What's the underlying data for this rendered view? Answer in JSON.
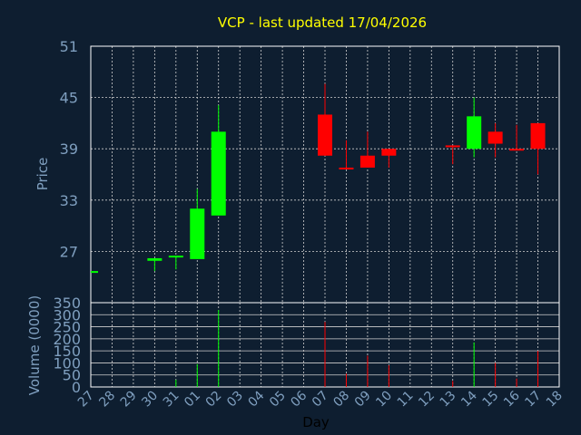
{
  "chart_data": {
    "type": "candlestick",
    "title": "VCP - last updated 17/04/2026",
    "xlabel": "Day",
    "categories": [
      "27",
      "28",
      "29",
      "30",
      "31",
      "01",
      "02",
      "03",
      "04",
      "05",
      "06",
      "07",
      "08",
      "09",
      "10",
      "11",
      "12",
      "13",
      "14",
      "15",
      "16",
      "17",
      "18"
    ],
    "price": {
      "ylabel": "Price",
      "ylim": [
        21,
        51
      ],
      "yticks": [
        27,
        33,
        39,
        45,
        51
      ],
      "grid": true,
      "candles": [
        {
          "day": "27",
          "open": 24.7,
          "high": 24.7,
          "low": 24.7,
          "close": 24.7
        },
        {
          "day": "30",
          "open": 25.9,
          "high": 26.0,
          "low": 24.7,
          "close": 26.2
        },
        {
          "day": "31",
          "open": 26.3,
          "high": 26.4,
          "low": 24.9,
          "close": 26.5
        },
        {
          "day": "01",
          "open": 26.1,
          "high": 34.3,
          "low": 26.1,
          "close": 32.0
        },
        {
          "day": "02",
          "open": 31.2,
          "high": 44.1,
          "low": 31.2,
          "close": 41.0
        },
        {
          "day": "07",
          "open": 43.0,
          "high": 46.6,
          "low": 38.2,
          "close": 38.2
        },
        {
          "day": "08",
          "open": 36.8,
          "high": 40.0,
          "low": 36.8,
          "close": 36.7
        },
        {
          "day": "09",
          "open": 38.2,
          "high": 41.0,
          "low": 36.8,
          "close": 36.8
        },
        {
          "day": "10",
          "open": 39.0,
          "high": 39.0,
          "low": 36.8,
          "close": 38.2
        },
        {
          "day": "13",
          "open": 39.4,
          "high": 39.4,
          "low": 37.2,
          "close": 39.2
        },
        {
          "day": "14",
          "open": 39.0,
          "high": 45.0,
          "low": 38.0,
          "close": 42.8
        },
        {
          "day": "15",
          "open": 41.0,
          "high": 42.0,
          "low": 38.0,
          "close": 39.6
        },
        {
          "day": "16",
          "open": 39.0,
          "high": 41.8,
          "low": 39.0,
          "close": 38.9
        },
        {
          "day": "17",
          "open": 42.0,
          "high": 42.0,
          "low": 36.0,
          "close": 39.0
        }
      ]
    },
    "volume": {
      "ylabel": "Volume (0000)",
      "ylim": [
        0,
        350
      ],
      "yticks": [
        0,
        50,
        100,
        150,
        200,
        250,
        300,
        350
      ],
      "bars": [
        {
          "day": "31",
          "value": 30,
          "direction": "up"
        },
        {
          "day": "01",
          "value": 95,
          "direction": "up"
        },
        {
          "day": "02",
          "value": 320,
          "direction": "up"
        },
        {
          "day": "07",
          "value": 270,
          "direction": "down"
        },
        {
          "day": "08",
          "value": 55,
          "direction": "down"
        },
        {
          "day": "09",
          "value": 130,
          "direction": "down"
        },
        {
          "day": "10",
          "value": 90,
          "direction": "down"
        },
        {
          "day": "13",
          "value": 25,
          "direction": "down"
        },
        {
          "day": "14",
          "value": 185,
          "direction": "up"
        },
        {
          "day": "15",
          "value": 100,
          "direction": "down"
        },
        {
          "day": "16",
          "value": 35,
          "direction": "down"
        },
        {
          "day": "17",
          "value": 150,
          "direction": "down"
        }
      ]
    },
    "colors": {
      "background": "#0e1e30",
      "up": "#00ff00",
      "down": "#ff0000",
      "title": "#ffff00",
      "axis_text": "#7f9fbf"
    }
  }
}
